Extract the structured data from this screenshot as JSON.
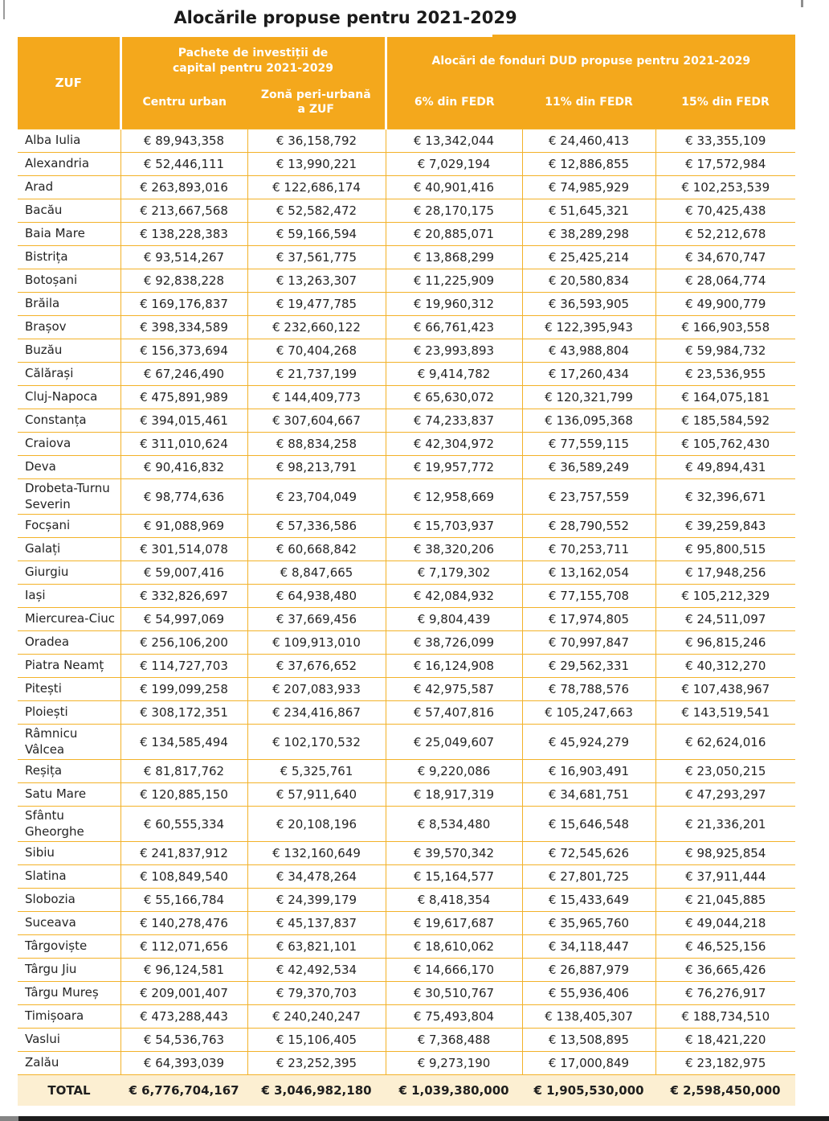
{
  "page": {
    "title": "Alocările propuse pentru 2021-2029"
  },
  "colors": {
    "header_bg": "#F4A81C",
    "grid_line": "#F3B229",
    "total_row_bg": "#FCEFD2",
    "header_text": "#FFFFFF",
    "body_text": "#242424"
  },
  "table": {
    "corner_label": "ZUF",
    "groups": [
      {
        "label": "Pachete de investiții de\ncapital pentru 2021-2029"
      },
      {
        "label": "Alocări de fonduri DUD propuse pentru 2021-2029"
      }
    ],
    "subheaders": [
      "Centru urban",
      "Zonă peri-urbană\na ZUF",
      "6% din FEDR",
      "11% din FEDR",
      "15% din FEDR"
    ],
    "rows": [
      {
        "name": "Alba Iulia",
        "values": [
          "€ 89,943,358",
          "€ 36,158,792",
          "€ 13,342,044",
          "€ 24,460,413",
          "€ 33,355,109"
        ]
      },
      {
        "name": "Alexandria",
        "values": [
          "€ 52,446,111",
          "€ 13,990,221",
          "€ 7,029,194",
          "€ 12,886,855",
          "€ 17,572,984"
        ]
      },
      {
        "name": "Arad",
        "values": [
          "€ 263,893,016",
          "€ 122,686,174",
          "€ 40,901,416",
          "€ 74,985,929",
          "€ 102,253,539"
        ]
      },
      {
        "name": "Bacău",
        "values": [
          "€ 213,667,568",
          "€ 52,582,472",
          "€ 28,170,175",
          "€ 51,645,321",
          "€ 70,425,438"
        ]
      },
      {
        "name": "Baia Mare",
        "values": [
          "€ 138,228,383",
          "€ 59,166,594",
          "€ 20,885,071",
          "€ 38,289,298",
          "€ 52,212,678"
        ]
      },
      {
        "name": "Bistrița",
        "values": [
          "€ 93,514,267",
          "€ 37,561,775",
          "€ 13,868,299",
          "€ 25,425,214",
          "€ 34,670,747"
        ]
      },
      {
        "name": "Botoșani",
        "values": [
          "€ 92,838,228",
          "€ 13,263,307",
          "€ 11,225,909",
          "€ 20,580,834",
          "€ 28,064,774"
        ]
      },
      {
        "name": "Brăila",
        "values": [
          "€ 169,176,837",
          "€ 19,477,785",
          "€ 19,960,312",
          "€ 36,593,905",
          "€ 49,900,779"
        ]
      },
      {
        "name": "Brașov",
        "values": [
          "€ 398,334,589",
          "€ 232,660,122",
          "€ 66,761,423",
          "€ 122,395,943",
          "€ 166,903,558"
        ]
      },
      {
        "name": "Buzău",
        "values": [
          "€ 156,373,694",
          "€ 70,404,268",
          "€ 23,993,893",
          "€ 43,988,804",
          "€ 59,984,732"
        ]
      },
      {
        "name": "Călărași",
        "values": [
          "€ 67,246,490",
          "€ 21,737,199",
          "€ 9,414,782",
          "€ 17,260,434",
          "€ 23,536,955"
        ]
      },
      {
        "name": "Cluj-Napoca",
        "values": [
          "€ 475,891,989",
          "€ 144,409,773",
          "€ 65,630,072",
          "€ 120,321,799",
          "€ 164,075,181"
        ]
      },
      {
        "name": "Constanța",
        "values": [
          "€ 394,015,461",
          "€ 307,604,667",
          "€ 74,233,837",
          "€ 136,095,368",
          "€ 185,584,592"
        ]
      },
      {
        "name": "Craiova",
        "values": [
          "€ 311,010,624",
          "€ 88,834,258",
          "€ 42,304,972",
          "€ 77,559,115",
          "€ 105,762,430"
        ]
      },
      {
        "name": "Deva",
        "values": [
          "€ 90,416,832",
          "€ 98,213,791",
          "€ 19,957,772",
          "€ 36,589,249",
          "€ 49,894,431"
        ]
      },
      {
        "name": "Drobeta-Turnu\nSeverin",
        "values": [
          "€ 98,774,636",
          "€ 23,704,049",
          "€ 12,958,669",
          "€ 23,757,559",
          "€ 32,396,671"
        ]
      },
      {
        "name": "Focșani",
        "values": [
          "€ 91,088,969",
          "€ 57,336,586",
          "€ 15,703,937",
          "€ 28,790,552",
          "€ 39,259,843"
        ]
      },
      {
        "name": "Galați",
        "values": [
          "€ 301,514,078",
          "€ 60,668,842",
          "€ 38,320,206",
          "€ 70,253,711",
          "€ 95,800,515"
        ]
      },
      {
        "name": "Giurgiu",
        "values": [
          "€ 59,007,416",
          "€ 8,847,665",
          "€ 7,179,302",
          "€ 13,162,054",
          "€ 17,948,256"
        ]
      },
      {
        "name": "Iași",
        "values": [
          "€ 332,826,697",
          "€ 64,938,480",
          "€ 42,084,932",
          "€ 77,155,708",
          "€ 105,212,329"
        ]
      },
      {
        "name": "Miercurea-Ciuc",
        "values": [
          "€ 54,997,069",
          "€ 37,669,456",
          "€ 9,804,439",
          "€ 17,974,805",
          "€ 24,511,097"
        ]
      },
      {
        "name": "Oradea",
        "values": [
          "€ 256,106,200",
          "€ 109,913,010",
          "€ 38,726,099",
          "€ 70,997,847",
          "€ 96,815,246"
        ]
      },
      {
        "name": "Piatra Neamț",
        "values": [
          "€ 114,727,703",
          "€ 37,676,652",
          "€ 16,124,908",
          "€ 29,562,331",
          "€ 40,312,270"
        ]
      },
      {
        "name": "Pitești",
        "values": [
          "€ 199,099,258",
          "€ 207,083,933",
          "€ 42,975,587",
          "€ 78,788,576",
          "€ 107,438,967"
        ]
      },
      {
        "name": "Ploiești",
        "values": [
          "€ 308,172,351",
          "€ 234,416,867",
          "€ 57,407,816",
          "€ 105,247,663",
          "€ 143,519,541"
        ]
      },
      {
        "name": "Râmnicu\nVâlcea",
        "values": [
          "€ 134,585,494",
          "€ 102,170,532",
          "€ 25,049,607",
          "€ 45,924,279",
          "€ 62,624,016"
        ]
      },
      {
        "name": "Reșița",
        "values": [
          "€ 81,817,762",
          "€ 5,325,761",
          "€ 9,220,086",
          "€ 16,903,491",
          "€ 23,050,215"
        ]
      },
      {
        "name": "Satu Mare",
        "values": [
          "€ 120,885,150",
          "€ 57,911,640",
          "€ 18,917,319",
          "€ 34,681,751",
          "€ 47,293,297"
        ]
      },
      {
        "name": "Sfântu\nGheorghe",
        "values": [
          "€ 60,555,334",
          "€ 20,108,196",
          "€ 8,534,480",
          "€ 15,646,548",
          "€ 21,336,201"
        ]
      },
      {
        "name": "Sibiu",
        "values": [
          "€ 241,837,912",
          "€ 132,160,649",
          "€ 39,570,342",
          "€ 72,545,626",
          "€ 98,925,854"
        ]
      },
      {
        "name": "Slatina",
        "values": [
          "€ 108,849,540",
          "€ 34,478,264",
          "€ 15,164,577",
          "€ 27,801,725",
          "€ 37,911,444"
        ]
      },
      {
        "name": "Slobozia",
        "values": [
          "€ 55,166,784",
          "€ 24,399,179",
          "€ 8,418,354",
          "€ 15,433,649",
          "€ 21,045,885"
        ]
      },
      {
        "name": "Suceava",
        "values": [
          "€ 140,278,476",
          "€ 45,137,837",
          "€ 19,617,687",
          "€ 35,965,760",
          "€ 49,044,218"
        ]
      },
      {
        "name": "Târgoviște",
        "values": [
          "€ 112,071,656",
          "€ 63,821,101",
          "€ 18,610,062",
          "€ 34,118,447",
          "€ 46,525,156"
        ]
      },
      {
        "name": "Târgu Jiu",
        "values": [
          "€ 96,124,581",
          "€ 42,492,534",
          "€ 14,666,170",
          "€ 26,887,979",
          "€ 36,665,426"
        ]
      },
      {
        "name": "Târgu Mureș",
        "values": [
          "€ 209,001,407",
          "€ 79,370,703",
          "€ 30,510,767",
          "€ 55,936,406",
          "€ 76,276,917"
        ]
      },
      {
        "name": "Timișoara",
        "values": [
          "€ 473,288,443",
          "€ 240,240,247",
          "€ 75,493,804",
          "€ 138,405,307",
          "€ 188,734,510"
        ]
      },
      {
        "name": "Vaslui",
        "values": [
          "€ 54,536,763",
          "€ 15,106,405",
          "€ 7,368,488",
          "€ 13,508,895",
          "€ 18,421,220"
        ]
      },
      {
        "name": "Zalău",
        "values": [
          "€ 64,393,039",
          "€ 23,252,395",
          "€ 9,273,190",
          "€ 17,000,849",
          "€ 23,182,975"
        ]
      }
    ],
    "total": {
      "label": "TOTAL",
      "values": [
        "€ 6,776,704,167",
        "€ 3,046,982,180",
        "€ 1,039,380,000",
        "€ 1,905,530,000",
        "€ 2,598,450,000"
      ]
    }
  }
}
